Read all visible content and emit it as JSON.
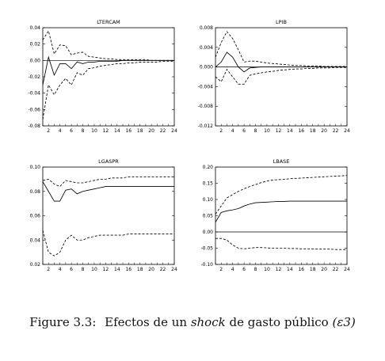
{
  "caption": {
    "label": "Figure 3.3:",
    "text_before": "Efectos de un",
    "emphasis": "shock",
    "text_after": "de gasto público",
    "symbol": "(ε3)"
  },
  "chart_data": [
    {
      "type": "line",
      "title": "LTERCAM",
      "ylim": [
        -0.08,
        0.04
      ],
      "yticks": [
        -0.08,
        -0.06,
        -0.04,
        -0.02,
        0.0,
        0.02,
        0.04
      ],
      "ytick_labels": [
        "-0.08",
        "-0.06",
        "-0.04",
        "-0.02",
        "0.00",
        "0.02",
        "0.04"
      ],
      "xlim": [
        1,
        24
      ],
      "xticks": [
        2,
        4,
        6,
        8,
        10,
        12,
        14,
        16,
        18,
        20,
        22,
        24
      ],
      "zero_line": true,
      "x": [
        1,
        2,
        3,
        4,
        5,
        6,
        7,
        8,
        9,
        10,
        11,
        12,
        13,
        14,
        15,
        16,
        17,
        18,
        19,
        20,
        21,
        22,
        23,
        24
      ],
      "series": [
        {
          "style": "solid",
          "values": [
            -0.03,
            0.004,
            -0.018,
            -0.004,
            -0.004,
            -0.01,
            -0.002,
            -0.004,
            -0.002,
            -0.002,
            -0.001,
            -0.001,
            -0.001,
            -0.001,
            0,
            0,
            0,
            0,
            0,
            0,
            0,
            0,
            0,
            0
          ]
        },
        {
          "style": "dashed",
          "values": [
            0.025,
            0.036,
            0.008,
            0.019,
            0.018,
            0.007,
            0.009,
            0.01,
            0.005,
            0.004,
            0.003,
            0.002,
            0.002,
            0.001,
            0.001,
            0.001,
            0.001,
            0.001,
            0.001,
            0.0,
            0.0,
            0.0,
            0.0,
            0.0
          ]
        },
        {
          "style": "dashed",
          "values": [
            -0.072,
            -0.03,
            -0.042,
            -0.03,
            -0.022,
            -0.03,
            -0.015,
            -0.018,
            -0.01,
            -0.009,
            -0.007,
            -0.006,
            -0.005,
            -0.004,
            -0.004,
            -0.003,
            -0.003,
            -0.002,
            -0.002,
            -0.002,
            -0.002,
            -0.001,
            -0.001,
            -0.001
          ]
        }
      ]
    },
    {
      "type": "line",
      "title": "LPIB",
      "ylim": [
        -0.012,
        0.008
      ],
      "yticks": [
        -0.012,
        -0.008,
        -0.004,
        0.0,
        0.004,
        0.008
      ],
      "ytick_labels": [
        "-0.012",
        "-0.008",
        "-0.004",
        "0.000",
        "0.004",
        "0.008"
      ],
      "xlim": [
        1,
        24
      ],
      "xticks": [
        2,
        4,
        6,
        8,
        10,
        12,
        14,
        16,
        18,
        20,
        22,
        24
      ],
      "zero_line": true,
      "x": [
        1,
        2,
        3,
        4,
        5,
        6,
        7,
        8,
        9,
        10,
        11,
        12,
        13,
        14,
        15,
        16,
        17,
        18,
        19,
        20,
        21,
        22,
        23,
        24
      ],
      "series": [
        {
          "style": "solid",
          "values": [
            0.0,
            0.001,
            0.003,
            0.002,
            0.0,
            -0.001,
            -0.0002,
            -0.0001,
            0,
            0,
            0,
            0,
            0,
            0,
            0,
            0,
            0,
            0,
            0,
            0,
            0,
            0,
            0,
            0
          ]
        },
        {
          "style": "dashed",
          "values": [
            0.002,
            0.005,
            0.0072,
            0.0058,
            0.0035,
            0.001,
            0.0012,
            0.0012,
            0.001,
            0.0008,
            0.0007,
            0.0006,
            0.0005,
            0.0004,
            0.0003,
            0.0003,
            0.0002,
            0.0002,
            0.0002,
            0.0001,
            0.0001,
            0.0001,
            0.0001,
            0.0001
          ]
        },
        {
          "style": "dashed",
          "values": [
            -0.002,
            -0.003,
            -0.0005,
            -0.002,
            -0.0035,
            -0.0035,
            -0.0017,
            -0.0014,
            -0.0012,
            -0.001,
            -0.0009,
            -0.0007,
            -0.0006,
            -0.0005,
            -0.0004,
            -0.0004,
            -0.0003,
            -0.0003,
            -0.0002,
            -0.0002,
            -0.0002,
            -0.0001,
            -0.0001,
            -0.0001
          ]
        }
      ]
    },
    {
      "type": "line",
      "title": "LGASPR",
      "ylim": [
        0.02,
        0.1
      ],
      "yticks": [
        0.02,
        0.04,
        0.06,
        0.08,
        0.1
      ],
      "ytick_labels": [
        "0.02",
        "0.04",
        "0.06",
        "0.08",
        "0.10"
      ],
      "xlim": [
        1,
        24
      ],
      "xticks": [
        2,
        4,
        6,
        8,
        10,
        12,
        14,
        16,
        18,
        20,
        22,
        24
      ],
      "zero_line": false,
      "x": [
        1,
        2,
        3,
        4,
        5,
        6,
        7,
        8,
        9,
        10,
        11,
        12,
        13,
        14,
        15,
        16,
        17,
        18,
        19,
        20,
        21,
        22,
        23,
        24
      ],
      "series": [
        {
          "style": "solid",
          "values": [
            0.088,
            0.08,
            0.072,
            0.072,
            0.081,
            0.082,
            0.078,
            0.08,
            0.081,
            0.082,
            0.083,
            0.084,
            0.084,
            0.084,
            0.084,
            0.084,
            0.084,
            0.084,
            0.084,
            0.084,
            0.084,
            0.084,
            0.084,
            0.084
          ]
        },
        {
          "style": "dashed",
          "values": [
            0.089,
            0.09,
            0.086,
            0.084,
            0.089,
            0.088,
            0.087,
            0.087,
            0.088,
            0.089,
            0.09,
            0.09,
            0.091,
            0.091,
            0.091,
            0.092,
            0.092,
            0.092,
            0.092,
            0.092,
            0.092,
            0.092,
            0.092,
            0.092
          ]
        },
        {
          "style": "dashed",
          "values": [
            0.048,
            0.03,
            0.027,
            0.03,
            0.04,
            0.044,
            0.04,
            0.04,
            0.042,
            0.043,
            0.044,
            0.044,
            0.044,
            0.044,
            0.044,
            0.045,
            0.045,
            0.045,
            0.045,
            0.045,
            0.045,
            0.045,
            0.045,
            0.045
          ]
        }
      ]
    },
    {
      "type": "line",
      "title": "LBASE",
      "ylim": [
        -0.1,
        0.2
      ],
      "yticks": [
        -0.1,
        -0.05,
        0.0,
        0.05,
        0.1,
        0.15,
        0.2
      ],
      "ytick_labels": [
        "-0.10",
        "-0.05",
        "0.00",
        "0.05",
        "0.10",
        "0.15",
        "0.20"
      ],
      "xlim": [
        1,
        24
      ],
      "xticks": [
        2,
        4,
        6,
        8,
        10,
        12,
        14,
        16,
        18,
        20,
        22,
        24
      ],
      "zero_line": true,
      "x": [
        1,
        2,
        3,
        4,
        5,
        6,
        7,
        8,
        9,
        10,
        11,
        12,
        13,
        14,
        15,
        16,
        17,
        18,
        19,
        20,
        21,
        22,
        23,
        24
      ],
      "series": [
        {
          "style": "solid",
          "values": [
            0.03,
            0.06,
            0.065,
            0.068,
            0.072,
            0.08,
            0.086,
            0.09,
            0.091,
            0.092,
            0.093,
            0.094,
            0.094,
            0.095,
            0.095,
            0.095,
            0.095,
            0.095,
            0.095,
            0.095,
            0.095,
            0.095,
            0.095,
            0.095
          ]
        },
        {
          "style": "dashed",
          "values": [
            0.055,
            0.08,
            0.105,
            0.115,
            0.125,
            0.133,
            0.14,
            0.146,
            0.152,
            0.157,
            0.16,
            0.161,
            0.162,
            0.164,
            0.165,
            0.166,
            0.167,
            0.168,
            0.169,
            0.17,
            0.171,
            0.172,
            0.173,
            0.174
          ]
        },
        {
          "style": "dashed",
          "values": [
            -0.02,
            -0.02,
            -0.025,
            -0.04,
            -0.05,
            -0.052,
            -0.05,
            -0.048,
            -0.048,
            -0.049,
            -0.05,
            -0.05,
            -0.05,
            -0.051,
            -0.051,
            -0.052,
            -0.052,
            -0.052,
            -0.053,
            -0.053,
            -0.053,
            -0.054,
            -0.054,
            -0.054
          ]
        }
      ]
    }
  ]
}
